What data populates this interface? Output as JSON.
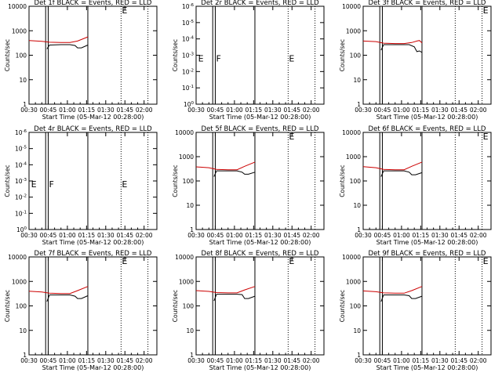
{
  "figure": {
    "colors": {
      "events": "#000000",
      "lld": "#cc0000",
      "axis": "#000000",
      "background": "#ffffff"
    }
  },
  "chart_data": [
    {
      "type": "line",
      "panel": "det-1f",
      "title": "Det 1f BLACK = Events, RED = LLD",
      "xlabel": "Start Time (05-Mar-12 00:28:00)",
      "ylabel": "Counts/sec",
      "x_ticks": [
        "00:30",
        "00:45",
        "01:00",
        "01:15",
        "01:30",
        "01:45",
        "02:00"
      ],
      "y_ticks": [
        "1",
        "10",
        "100",
        "1000",
        "10000"
      ],
      "ylim": [
        1,
        10000
      ],
      "xlim_minutes": [
        30,
        130
      ],
      "solid_markers_min": [
        43,
        45,
        76
      ],
      "dotted_markers_min": [
        102,
        123
      ],
      "flags": [
        {
          "label": "E",
          "t": 102,
          "y": 10000
        }
      ],
      "series": [
        {
          "name": "LLD",
          "color": "red",
          "points": [
            [
              30,
              400
            ],
            [
              40,
              370
            ],
            [
              46,
              340
            ],
            [
              55,
              330
            ],
            [
              62,
              330
            ],
            [
              68,
              380
            ],
            [
              76,
              560
            ]
          ]
        },
        {
          "name": "Events",
          "color": "black",
          "points": [
            [
              44,
              180
            ],
            [
              46,
              260
            ],
            [
              55,
              270
            ],
            [
              62,
              270
            ],
            [
              66,
              250
            ],
            [
              68,
              200
            ],
            [
              71,
              200
            ],
            [
              76,
              260
            ]
          ]
        }
      ]
    },
    {
      "type": "line",
      "panel": "det-2r",
      "title": "Det 2r BLACK = Events, RED = LLD",
      "xlabel": "Start Time (05-Mar-12 00:28:00)",
      "ylabel": "Counts/sec",
      "x_ticks": [
        "00:30",
        "00:45",
        "01:00",
        "01:15",
        "01:30",
        "01:45",
        "02:00"
      ],
      "y_ticks": [
        "10^0",
        "10^-1",
        "10^-2",
        "10^-3",
        "10^-4",
        "10^-5",
        "10^-6"
      ],
      "ylim": [
        1e-06,
        1
      ],
      "xlim_minutes": [
        30,
        130
      ],
      "solid_markers_min": [
        43,
        45,
        76
      ],
      "dotted_markers_min": [
        102,
        123
      ],
      "flags": [
        {
          "label": "E",
          "t": 31,
          "y": 0.001
        },
        {
          "label": "F",
          "t": 45,
          "y": 0.001
        },
        {
          "label": "E",
          "t": 102,
          "y": 0.001
        }
      ],
      "series": []
    },
    {
      "type": "line",
      "panel": "det-3f",
      "title": "Det 3f BLACK = Events, RED = LLD",
      "xlabel": "Start Time (05-Mar-12 00:28:00)",
      "ylabel": "Counts/sec",
      "x_ticks": [
        "00:30",
        "00:45",
        "01:00",
        "01:15",
        "01:30",
        "01:45",
        "02:00"
      ],
      "y_ticks": [
        "1",
        "10",
        "100",
        "1000",
        "10000"
      ],
      "ylim": [
        1,
        10000
      ],
      "xlim_minutes": [
        30,
        130
      ],
      "solid_markers_min": [
        43,
        45,
        76
      ],
      "dotted_markers_min": [
        102,
        123
      ],
      "flags": [
        {
          "label": "E",
          "t": 123,
          "y": 10000
        }
      ],
      "series": [
        {
          "name": "LLD",
          "color": "red",
          "points": [
            [
              30,
              380
            ],
            [
              40,
              360
            ],
            [
              46,
              310
            ],
            [
              55,
              300
            ],
            [
              62,
              300
            ],
            [
              68,
              330
            ],
            [
              72,
              380
            ],
            [
              74,
              400
            ],
            [
              76,
              320
            ]
          ]
        },
        {
          "name": "Events",
          "color": "black",
          "points": [
            [
              44,
              160
            ],
            [
              46,
              270
            ],
            [
              55,
              270
            ],
            [
              62,
              270
            ],
            [
              66,
              270
            ],
            [
              70,
              220
            ],
            [
              72,
              140
            ],
            [
              74,
              150
            ],
            [
              76,
              130
            ]
          ]
        }
      ]
    },
    {
      "type": "line",
      "panel": "det-4r",
      "title": "Det 4r BLACK = Events, RED = LLD",
      "xlabel": "Start Time (05-Mar-12 00:28:00)",
      "ylabel": "Counts/sec",
      "x_ticks": [
        "00:30",
        "00:45",
        "01:00",
        "01:15",
        "01:30",
        "01:45",
        "02:00"
      ],
      "y_ticks": [
        "10^0",
        "10^-1",
        "10^-2",
        "10^-3",
        "10^-4",
        "10^-5",
        "10^-6"
      ],
      "ylim": [
        1e-06,
        1
      ],
      "xlim_minutes": [
        30,
        130
      ],
      "solid_markers_min": [
        43,
        45,
        76
      ],
      "dotted_markers_min": [
        102,
        123
      ],
      "flags": [
        {
          "label": "E",
          "t": 31,
          "y": 0.001
        },
        {
          "label": "F",
          "t": 45,
          "y": 0.001
        },
        {
          "label": "E",
          "t": 102,
          "y": 0.001
        }
      ],
      "series": []
    },
    {
      "type": "line",
      "panel": "det-5f",
      "title": "Det 5f BLACK = Events, RED = LLD",
      "xlabel": "Start Time (05-Mar-12 00:28:00)",
      "ylabel": "Counts/sec",
      "x_ticks": [
        "00:30",
        "00:45",
        "01:00",
        "01:15",
        "01:30",
        "01:45",
        "02:00"
      ],
      "y_ticks": [
        "1",
        "10",
        "100",
        "1000",
        "10000"
      ],
      "ylim": [
        1,
        10000
      ],
      "xlim_minutes": [
        30,
        130
      ],
      "solid_markers_min": [
        43,
        45,
        76
      ],
      "dotted_markers_min": [
        102,
        123
      ],
      "flags": [
        {
          "label": "E",
          "t": 102,
          "y": 10000
        }
      ],
      "series": [
        {
          "name": "LLD",
          "color": "red",
          "points": [
            [
              30,
              380
            ],
            [
              40,
              350
            ],
            [
              46,
              300
            ],
            [
              55,
              290
            ],
            [
              62,
              290
            ],
            [
              68,
              400
            ],
            [
              76,
              600
            ]
          ]
        },
        {
          "name": "Events",
          "color": "black",
          "points": [
            [
              44,
              150
            ],
            [
              46,
              260
            ],
            [
              55,
              260
            ],
            [
              62,
              260
            ],
            [
              66,
              230
            ],
            [
              68,
              190
            ],
            [
              71,
              190
            ],
            [
              76,
              230
            ]
          ]
        }
      ]
    },
    {
      "type": "line",
      "panel": "det-6f",
      "title": "Det 6f BLACK = Events, RED = LLD",
      "xlabel": "Start Time (05-Mar-12 00:28:00)",
      "ylabel": "Counts/sec",
      "x_ticks": [
        "00:30",
        "00:45",
        "01:00",
        "01:15",
        "01:30",
        "01:45",
        "02:00"
      ],
      "y_ticks": [
        "1",
        "10",
        "100",
        "1000",
        "10000"
      ],
      "ylim": [
        1,
        10000
      ],
      "xlim_minutes": [
        30,
        130
      ],
      "solid_markers_min": [
        43,
        45,
        76
      ],
      "dotted_markers_min": [
        102,
        123
      ],
      "flags": [
        {
          "label": "E",
          "t": 123,
          "y": 10000
        }
      ],
      "series": [
        {
          "name": "LLD",
          "color": "red",
          "points": [
            [
              30,
              390
            ],
            [
              40,
              350
            ],
            [
              46,
              300
            ],
            [
              55,
              290
            ],
            [
              62,
              290
            ],
            [
              68,
              400
            ],
            [
              76,
              600
            ]
          ]
        },
        {
          "name": "Events",
          "color": "black",
          "points": [
            [
              44,
              150
            ],
            [
              46,
              260
            ],
            [
              55,
              260
            ],
            [
              62,
              260
            ],
            [
              66,
              230
            ],
            [
              68,
              180
            ],
            [
              71,
              180
            ],
            [
              76,
              220
            ]
          ]
        }
      ]
    },
    {
      "type": "line",
      "panel": "det-7f",
      "title": "Det 7f BLACK = Events, RED = LLD",
      "xlabel": "Start Time (05-Mar-12 00:28:00)",
      "ylabel": "Counts/sec",
      "x_ticks": [
        "00:30",
        "00:45",
        "01:00",
        "01:15",
        "01:30",
        "01:45",
        "02:00"
      ],
      "y_ticks": [
        "1",
        "10",
        "100",
        "1000",
        "10000"
      ],
      "ylim": [
        1,
        10000
      ],
      "xlim_minutes": [
        30,
        130
      ],
      "solid_markers_min": [
        43,
        45,
        76
      ],
      "dotted_markers_min": [
        102,
        123
      ],
      "flags": [
        {
          "label": "E",
          "t": 102,
          "y": 10000
        }
      ],
      "series": [
        {
          "name": "LLD",
          "color": "red",
          "points": [
            [
              30,
              400
            ],
            [
              40,
              370
            ],
            [
              46,
              330
            ],
            [
              55,
              320
            ],
            [
              62,
              320
            ],
            [
              68,
              420
            ],
            [
              76,
              620
            ]
          ]
        },
        {
          "name": "Events",
          "color": "black",
          "points": [
            [
              44,
              150
            ],
            [
              46,
              280
            ],
            [
              55,
              280
            ],
            [
              62,
              280
            ],
            [
              66,
              250
            ],
            [
              68,
              200
            ],
            [
              71,
              200
            ],
            [
              76,
              260
            ]
          ]
        }
      ]
    },
    {
      "type": "line",
      "panel": "det-8f",
      "title": "Det 8f BLACK = Events, RED = LLD",
      "xlabel": "Start Time (05-Mar-12 00:28:00)",
      "ylabel": "Counts/sec",
      "x_ticks": [
        "00:30",
        "00:45",
        "01:00",
        "01:15",
        "01:30",
        "01:45",
        "02:00"
      ],
      "y_ticks": [
        "1",
        "10",
        "100",
        "1000",
        "10000"
      ],
      "ylim": [
        1,
        10000
      ],
      "xlim_minutes": [
        30,
        130
      ],
      "solid_markers_min": [
        43,
        45,
        76
      ],
      "dotted_markers_min": [
        102,
        123
      ],
      "flags": [
        {
          "label": "E",
          "t": 102,
          "y": 10000
        }
      ],
      "series": [
        {
          "name": "LLD",
          "color": "red",
          "points": [
            [
              30,
              420
            ],
            [
              40,
              390
            ],
            [
              46,
              350
            ],
            [
              55,
              340
            ],
            [
              62,
              340
            ],
            [
              68,
              450
            ],
            [
              76,
              620
            ]
          ]
        },
        {
          "name": "Events",
          "color": "black",
          "points": [
            [
              44,
              160
            ],
            [
              46,
              300
            ],
            [
              55,
              300
            ],
            [
              62,
              300
            ],
            [
              66,
              290
            ],
            [
              68,
              200
            ],
            [
              71,
              200
            ],
            [
              76,
              250
            ]
          ]
        }
      ]
    },
    {
      "type": "line",
      "panel": "det-9f",
      "title": "Det 9f BLACK = Events, RED = LLD",
      "xlabel": "Start Time (05-Mar-12 00:28:00)",
      "ylabel": "Counts/sec",
      "x_ticks": [
        "00:30",
        "00:45",
        "01:00",
        "01:15",
        "01:30",
        "01:45",
        "02:00"
      ],
      "y_ticks": [
        "1",
        "10",
        "100",
        "1000",
        "10000"
      ],
      "ylim": [
        1,
        10000
      ],
      "xlim_minutes": [
        30,
        130
      ],
      "solid_markers_min": [
        43,
        45,
        76
      ],
      "dotted_markers_min": [
        102,
        123
      ],
      "flags": [
        {
          "label": "E",
          "t": 123,
          "y": 10000
        }
      ],
      "series": [
        {
          "name": "LLD",
          "color": "red",
          "points": [
            [
              30,
              410
            ],
            [
              40,
              380
            ],
            [
              46,
              340
            ],
            [
              55,
              330
            ],
            [
              62,
              330
            ],
            [
              68,
              420
            ],
            [
              76,
              620
            ]
          ]
        },
        {
          "name": "Events",
          "color": "black",
          "points": [
            [
              44,
              150
            ],
            [
              46,
              280
            ],
            [
              55,
              280
            ],
            [
              62,
              280
            ],
            [
              66,
              260
            ],
            [
              68,
              200
            ],
            [
              71,
              200
            ],
            [
              76,
              250
            ]
          ]
        }
      ]
    }
  ]
}
